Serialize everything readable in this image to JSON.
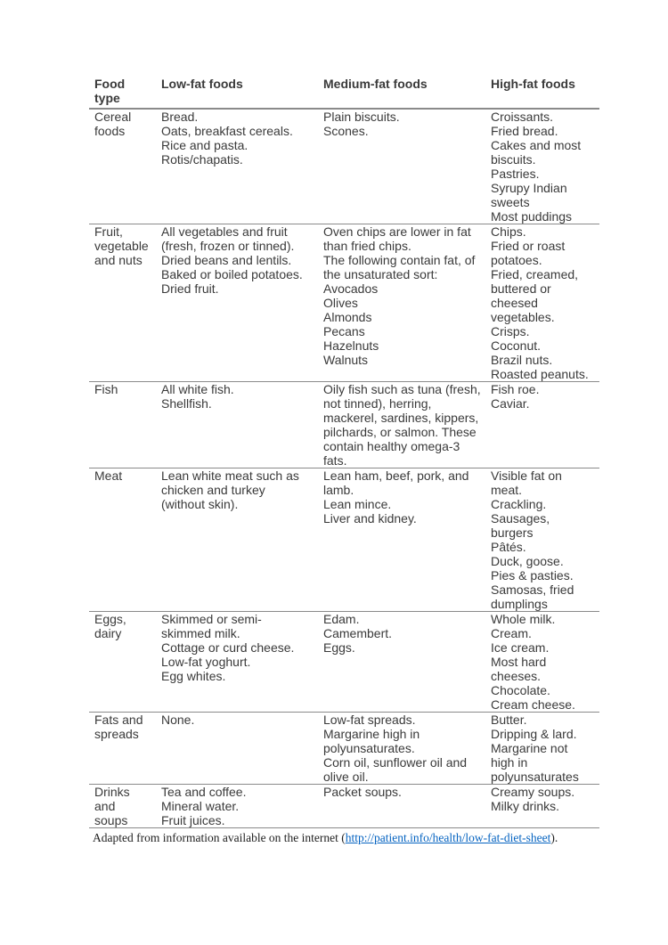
{
  "colors": {
    "text": "#3a3a3a",
    "border": "#8a8a8a",
    "link": "#0563c1"
  },
  "table": {
    "headers": [
      "Food type",
      "Low-fat foods",
      "Medium-fat foods",
      "High-fat foods"
    ],
    "rows": [
      {
        "food_type": "Cereal foods",
        "low": [
          "Bread.",
          "Oats, breakfast cereals.",
          "Rice and pasta.",
          "Rotis/chapatis."
        ],
        "medium": [
          "Plain biscuits.",
          "Scones."
        ],
        "high": [
          "Croissants.",
          "Fried bread.",
          "Cakes and most biscuits.",
          "Pastries.",
          "Syrupy Indian sweets",
          "Most puddings"
        ]
      },
      {
        "food_type": "Fruit, vegetable and nuts",
        "low": [
          "All vegetables and fruit (fresh, frozen or tinned).",
          "Dried beans and lentils.",
          "Baked or boiled potatoes.",
          "Dried fruit."
        ],
        "medium": [
          "Oven chips are lower in fat than fried chips.",
          "The following contain fat, of the unsaturated sort:",
          "Avocados",
          "Olives",
          "Almonds",
          "Pecans",
          "Hazelnuts",
          "Walnuts"
        ],
        "high": [
          "Chips.",
          "Fried or roast potatoes.",
          "Fried, creamed, buttered or cheesed vegetables.",
          "Crisps.",
          "Coconut.",
          "Brazil nuts.",
          "Roasted peanuts."
        ]
      },
      {
        "food_type": "Fish",
        "low": [
          "All white fish.",
          "Shellfish."
        ],
        "medium": [
          "Oily fish such as tuna (fresh, not tinned), herring, mackerel, sardines, kippers, pilchards, or salmon. These contain healthy omega-3 fats."
        ],
        "high": [
          "Fish roe.",
          "Caviar."
        ]
      },
      {
        "food_type": "Meat",
        "low": [
          "Lean white meat such as chicken and turkey (without skin)."
        ],
        "medium": [
          "Lean ham, beef, pork, and lamb.",
          "Lean mince.",
          "Liver and kidney."
        ],
        "high": [
          "Visible fat on meat.",
          "Crackling.",
          "Sausages, burgers",
          "Pâtés.",
          "Duck, goose.",
          "Pies & pasties.",
          "Samosas, fried dumplings"
        ]
      },
      {
        "food_type": "Eggs, dairy",
        "low": [
          "Skimmed or semi-skimmed milk.",
          "Cottage or curd cheese.",
          "Low-fat yoghurt.",
          "Egg whites."
        ],
        "medium": [
          "Edam.",
          "Camembert.",
          "Eggs."
        ],
        "high": [
          "Whole milk.",
          "Cream.",
          "Ice cream.",
          "Most hard cheeses.",
          "Chocolate.",
          "Cream cheese."
        ]
      },
      {
        "food_type": "Fats and spreads",
        "low": [
          "None."
        ],
        "medium": [
          "Low-fat spreads.",
          "Margarine high in polyunsaturates.",
          "Corn oil, sunflower oil and olive oil."
        ],
        "high": [
          "Butter.",
          "Dripping & lard.",
          "Margarine not high in polyunsaturates"
        ]
      },
      {
        "food_type": "Drinks and soups",
        "low": [
          "Tea and coffee.",
          "Mineral water.",
          "Fruit juices."
        ],
        "medium": [
          "Packet soups."
        ],
        "high": [
          "Creamy soups.",
          "Milky drinks."
        ]
      }
    ]
  },
  "footnote": {
    "prefix": "Adapted from information available on the internet (",
    "link": "http://patient.info/health/low-fat-diet-sheet",
    "suffix": ")."
  }
}
